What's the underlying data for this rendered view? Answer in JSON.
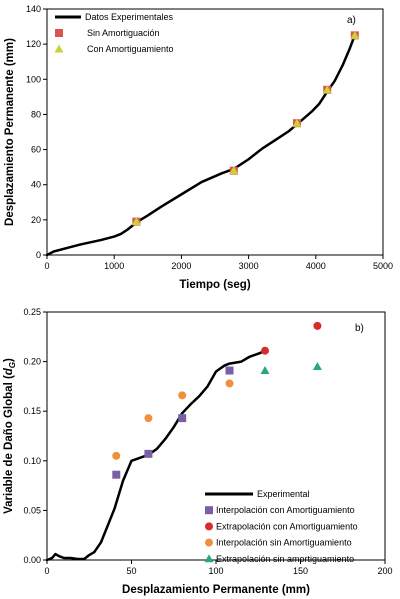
{
  "chart_data": [
    {
      "type": "line",
      "panel_label": "a)",
      "xlabel": "Tiempo  (seg)",
      "ylabel": "Desplazamiento Permanente  (mm)",
      "xlim": [
        0,
        5000
      ],
      "ylim": [
        0,
        140
      ],
      "xticks": [
        0,
        1000,
        2000,
        3000,
        4000,
        5000
      ],
      "yticks": [
        0,
        20,
        40,
        60,
        80,
        100,
        120,
        140
      ],
      "grid": false,
      "legend_position": "top-left",
      "series": [
        {
          "name": "Datos Experimentales",
          "kind": "line",
          "color": "#000000",
          "x": [
            0,
            100,
            300,
            500,
            800,
            1000,
            1100,
            1200,
            1330,
            1500,
            1700,
            2000,
            2300,
            2600,
            2780,
            3000,
            3200,
            3400,
            3600,
            3720,
            3800,
            3950,
            4050,
            4170,
            4280,
            4400,
            4500,
            4580
          ],
          "y": [
            0,
            2,
            4,
            6,
            8.5,
            10.5,
            12,
            14.5,
            18.5,
            22.5,
            27.5,
            34.5,
            41.5,
            46.5,
            49,
            54.5,
            60.5,
            65.5,
            70.5,
            74.5,
            77,
            82,
            86,
            93,
            99,
            108,
            117,
            125
          ]
        },
        {
          "name": "Sin Amortiguación",
          "kind": "marker",
          "marker": "square",
          "color": "#d9534f",
          "x": [
            1330,
            2780,
            3720,
            4170,
            4580
          ],
          "y": [
            19,
            48,
            75,
            94,
            125
          ]
        },
        {
          "name": "Con Amortiguamiento",
          "kind": "marker",
          "marker": "triangle",
          "color": "#c8d33a",
          "x": [
            1330,
            2780,
            3720,
            4170,
            4580
          ],
          "y": [
            19,
            48,
            75,
            94,
            125
          ]
        }
      ]
    },
    {
      "type": "line",
      "panel_label": "b)",
      "xlabel": "Desplazamiento Permanente  (mm)",
      "ylabel": "Variable de Daño Global  (dG)",
      "ylabel_main": "Variable de Daño Global  (",
      "ylabel_sym": "d",
      "ylabel_sub": "G",
      "ylabel_close": ")",
      "xlim": [
        0,
        200
      ],
      "ylim": [
        0,
        0.25
      ],
      "xticks": [
        0,
        50,
        100,
        150,
        200
      ],
      "yticks": [
        0,
        0.05,
        0.1,
        0.15,
        0.2,
        0.25
      ],
      "grid": false,
      "legend_position": "bottom-center",
      "series": [
        {
          "name": "Experimental",
          "kind": "line",
          "color": "#000000",
          "x": [
            0,
            3,
            5,
            7,
            10,
            14,
            18,
            22,
            25,
            28,
            32,
            36,
            40,
            45,
            50,
            55,
            60,
            65,
            70,
            75,
            80,
            85,
            90,
            95,
            100,
            105,
            108,
            115,
            120,
            125,
            128
          ],
          "y": [
            0,
            0.002,
            0.006,
            0.004,
            0.002,
            0.002,
            0.001,
            0.001,
            0.005,
            0.008,
            0.018,
            0.035,
            0.052,
            0.08,
            0.1,
            0.103,
            0.106,
            0.112,
            0.122,
            0.134,
            0.148,
            0.157,
            0.165,
            0.175,
            0.19,
            0.196,
            0.198,
            0.2,
            0.205,
            0.208,
            0.21
          ]
        },
        {
          "name": "Interpolación con Amortiguamiento",
          "kind": "marker",
          "marker": "square",
          "color": "#7b5fa6",
          "x": [
            41,
            60,
            80,
            108
          ],
          "y": [
            0.086,
            0.107,
            0.143,
            0.191
          ]
        },
        {
          "name": "Extrapolación con Amortiguamiento",
          "kind": "marker",
          "marker": "circle",
          "color": "#d62c2c",
          "x": [
            129,
            160
          ],
          "y": [
            0.211,
            0.236
          ]
        },
        {
          "name": "Interpolación sin Amortiguamiento",
          "kind": "marker",
          "marker": "circle",
          "color": "#f0903a",
          "x": [
            41,
            60,
            80,
            108
          ],
          "y": [
            0.105,
            0.143,
            0.166,
            0.178
          ]
        },
        {
          "name": "Extrapolación sin amortiguamiento",
          "kind": "marker",
          "marker": "triangle",
          "color": "#2aa680",
          "x": [
            129,
            160
          ],
          "y": [
            0.191,
            0.195
          ]
        }
      ]
    }
  ]
}
